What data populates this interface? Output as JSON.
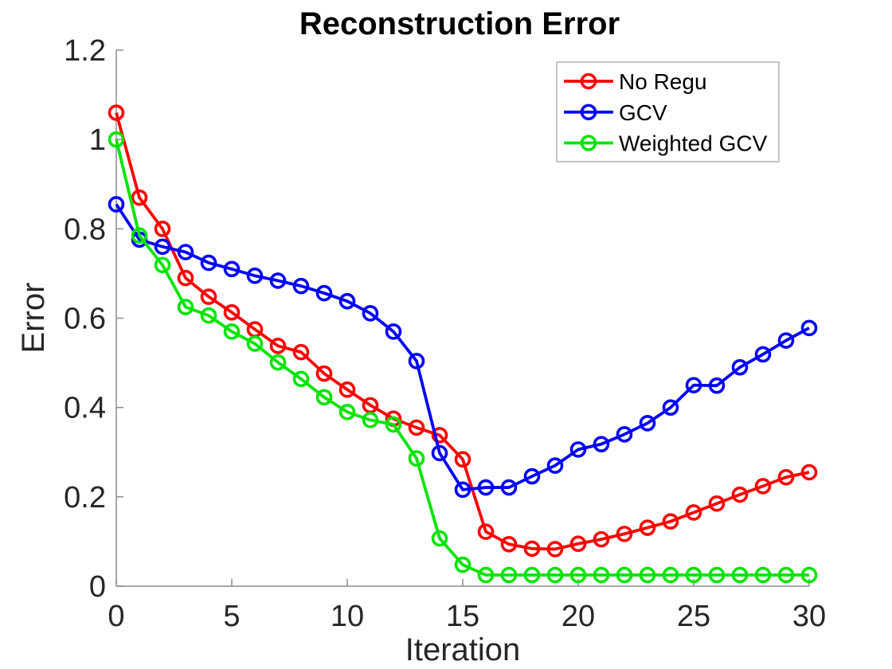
{
  "chart_data": {
    "type": "line",
    "title": "Reconstruction Error",
    "xlabel": "Iteration",
    "ylabel": "Error",
    "xlim": [
      0,
      30
    ],
    "ylim": [
      0,
      1.2
    ],
    "xticks": [
      0,
      5,
      10,
      15,
      20,
      25,
      30
    ],
    "xtick_labels": [
      "0",
      "5",
      "10",
      "15",
      "20",
      "25",
      "30"
    ],
    "yticks": [
      0,
      0.2,
      0.4,
      0.6,
      0.8,
      1.0,
      1.2
    ],
    "ytick_labels": [
      "0",
      "0.2",
      "0.4",
      "0.6",
      "0.8",
      "1",
      "1.2"
    ],
    "grid": false,
    "legend_position": "upper-right-inside",
    "marker": "o",
    "x": [
      0,
      1,
      2,
      3,
      4,
      5,
      6,
      7,
      8,
      9,
      10,
      11,
      12,
      13,
      14,
      15,
      16,
      17,
      18,
      19,
      20,
      21,
      22,
      23,
      24,
      25,
      26,
      27,
      28,
      29,
      30
    ],
    "series": [
      {
        "name": "No Regu",
        "color": "#ff0000",
        "values": [
          1.06,
          0.87,
          0.8,
          0.69,
          0.648,
          0.613,
          0.575,
          0.538,
          0.524,
          0.476,
          0.44,
          0.405,
          0.375,
          0.355,
          0.338,
          0.284,
          0.122,
          0.094,
          0.084,
          0.083,
          0.095,
          0.105,
          0.117,
          0.131,
          0.145,
          0.165,
          0.185,
          0.205,
          0.224,
          0.244,
          0.255
        ]
      },
      {
        "name": "GCV",
        "color": "#0000ff",
        "values": [
          0.855,
          0.776,
          0.76,
          0.748,
          0.724,
          0.71,
          0.695,
          0.684,
          0.672,
          0.656,
          0.638,
          0.611,
          0.57,
          0.504,
          0.298,
          0.216,
          0.221,
          0.221,
          0.246,
          0.27,
          0.306,
          0.318,
          0.34,
          0.365,
          0.4,
          0.45,
          0.449,
          0.49,
          0.519,
          0.55,
          0.578
        ]
      },
      {
        "name": "Weighted GCV",
        "color": "#00e400",
        "values": [
          1.0,
          0.785,
          0.719,
          0.625,
          0.606,
          0.57,
          0.543,
          0.501,
          0.464,
          0.423,
          0.39,
          0.372,
          0.362,
          0.286,
          0.107,
          0.048,
          0.025,
          0.025,
          0.025,
          0.025,
          0.025,
          0.025,
          0.025,
          0.025,
          0.025,
          0.025,
          0.025,
          0.025,
          0.025,
          0.025,
          0.025
        ]
      }
    ]
  }
}
